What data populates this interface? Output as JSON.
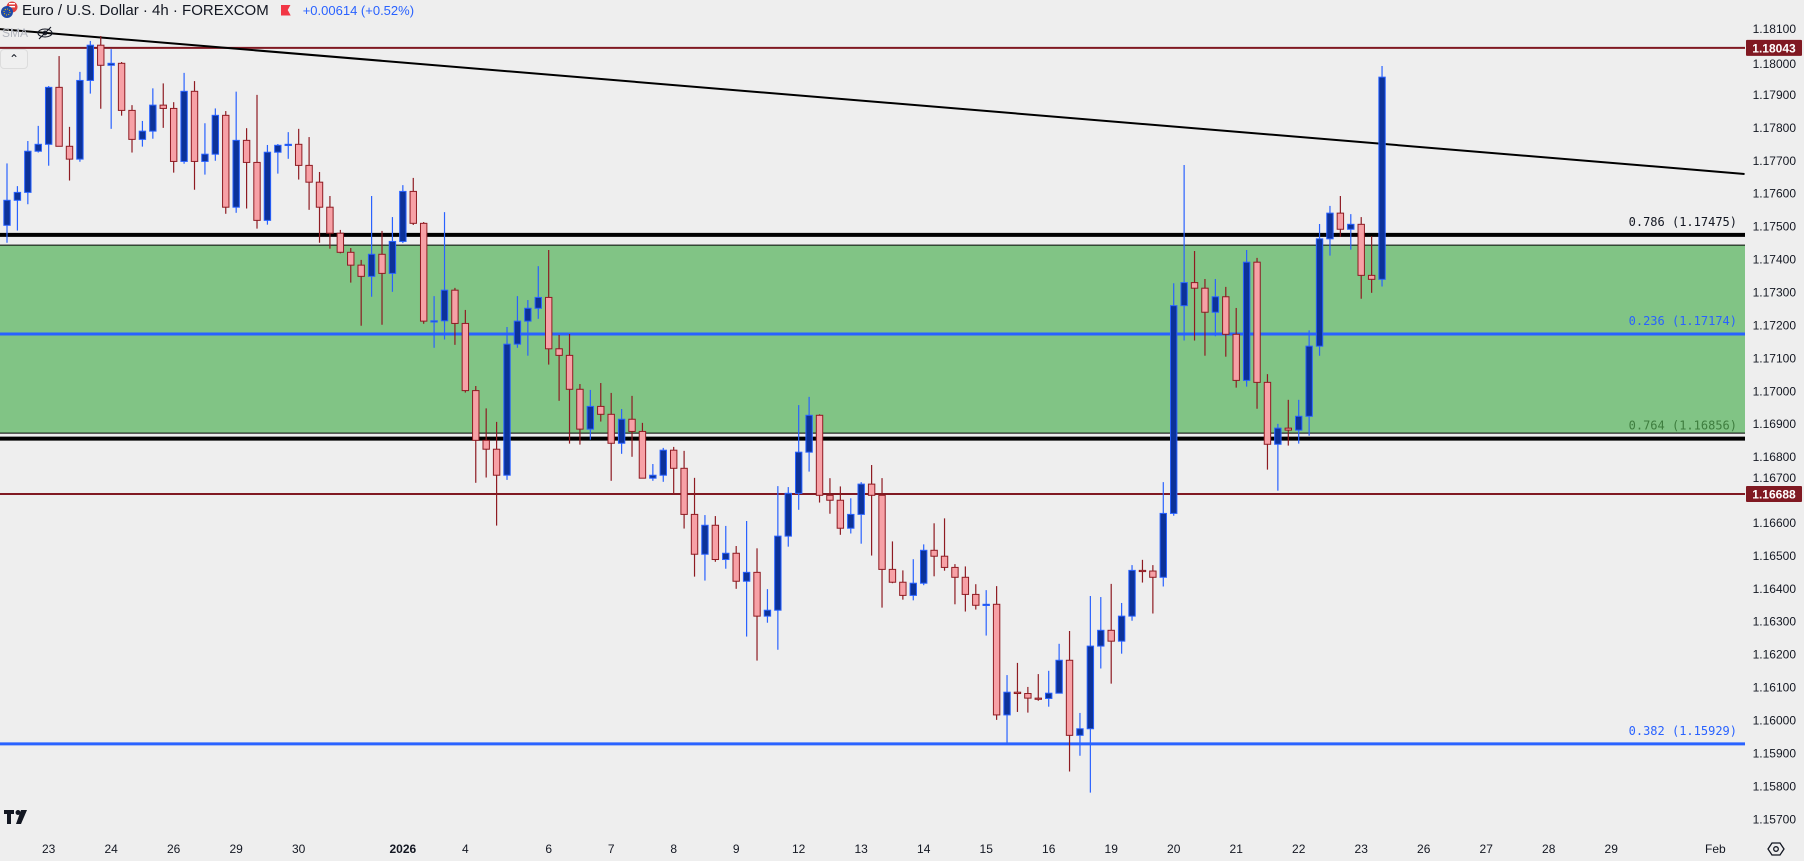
{
  "header": {
    "symbol_icon": "eur-usd-flag-icon",
    "title": "Euro / U.S. Dollar · 4h · FOREXCOM",
    "change": "+0.00614 (+0.52%)",
    "indicator": "SMA",
    "indicator_visibility_icon": "eye-slash-icon",
    "collapse_icon": "chevron-up-icon"
  },
  "colors": {
    "background": "#eeeeee",
    "bull_body": "#0c3299",
    "bull_border": "#2962ff",
    "bear_body": "#f7a1a6",
    "bear_border": "#8e1b22",
    "zone": "#81c485",
    "fib_blue": "#2962ff",
    "fib_black": "#000000",
    "level_red": "#801922",
    "trendline": "#000000"
  },
  "chart_data": {
    "type": "candlestick",
    "title": "Euro / U.S. Dollar · 4h · FOREXCOM",
    "ylim": [
      1.1565,
      1.1819
    ],
    "grid": false,
    "y_ticks": [
      "1.18200",
      "1.18100",
      "1.18000",
      "1.17900",
      "1.17800",
      "1.17700",
      "1.17600",
      "1.17500",
      "1.17400",
      "1.17300",
      "1.17200",
      "1.17100",
      "1.17000",
      "1.16900",
      "1.16800",
      "1.16700",
      "1.16600",
      "1.16500",
      "1.16400",
      "1.16300",
      "1.16200",
      "1.16100",
      "1.16000",
      "1.15900",
      "1.15800",
      "1.15700"
    ],
    "x_ticks": [
      {
        "label": "23",
        "bar": 4
      },
      {
        "label": "24",
        "bar": 10
      },
      {
        "label": "26",
        "bar": 16
      },
      {
        "label": "29",
        "bar": 22
      },
      {
        "label": "30",
        "bar": 28
      },
      {
        "label": "2026",
        "bar": 38,
        "bold": true
      },
      {
        "label": "4",
        "bar": 44
      },
      {
        "label": "6",
        "bar": 52
      },
      {
        "label": "7",
        "bar": 58
      },
      {
        "label": "8",
        "bar": 64
      },
      {
        "label": "9",
        "bar": 70
      },
      {
        "label": "12",
        "bar": 76
      },
      {
        "label": "13",
        "bar": 82
      },
      {
        "label": "14",
        "bar": 88
      },
      {
        "label": "15",
        "bar": 94
      },
      {
        "label": "16",
        "bar": 100
      },
      {
        "label": "19",
        "bar": 106
      },
      {
        "label": "20",
        "bar": 112
      },
      {
        "label": "21",
        "bar": 118
      },
      {
        "label": "22",
        "bar": 124
      },
      {
        "label": "23",
        "bar": 130
      },
      {
        "label": "26",
        "bar": 136
      },
      {
        "label": "27",
        "bar": 142
      },
      {
        "label": "28",
        "bar": 148
      },
      {
        "label": "29",
        "bar": 154
      },
      {
        "label": "Feb",
        "bar": 164
      }
    ],
    "ohlc_fields": [
      "open",
      "high",
      "low",
      "close"
    ],
    "candles": [
      [
        1.17504,
        1.17692,
        1.17451,
        1.1758
      ],
      [
        1.1758,
        1.17623,
        1.17488,
        1.17604
      ],
      [
        1.17604,
        1.1776,
        1.17568,
        1.17729
      ],
      [
        1.17729,
        1.17806,
        1.17725,
        1.1775
      ],
      [
        1.1775,
        1.17927,
        1.17685,
        1.17923
      ],
      [
        1.17923,
        1.18018,
        1.17744,
        1.17744
      ],
      [
        1.17744,
        1.17803,
        1.1764,
        1.17705
      ],
      [
        1.17705,
        1.1797,
        1.17697,
        1.17944
      ],
      [
        1.17944,
        1.18064,
        1.17904,
        1.18051
      ],
      [
        1.18051,
        1.18079,
        1.17858,
        1.1799
      ],
      [
        1.1799,
        1.18039,
        1.17797,
        1.17996
      ],
      [
        1.17996,
        1.18,
        1.17837,
        1.17853
      ],
      [
        1.17853,
        1.17869,
        1.17725,
        1.17765
      ],
      [
        1.17765,
        1.17821,
        1.17743,
        1.1779
      ],
      [
        1.1779,
        1.1792,
        1.17767,
        1.17869
      ],
      [
        1.17869,
        1.17935,
        1.178,
        1.17859
      ],
      [
        1.17859,
        1.17878,
        1.17664,
        1.17698
      ],
      [
        1.17698,
        1.17967,
        1.17691,
        1.17911
      ],
      [
        1.17911,
        1.17942,
        1.17612,
        1.17698
      ],
      [
        1.17698,
        1.17814,
        1.17658,
        1.1772
      ],
      [
        1.1772,
        1.17859,
        1.177,
        1.17838
      ],
      [
        1.17838,
        1.17851,
        1.17539,
        1.17559
      ],
      [
        1.17559,
        1.1791,
        1.17542,
        1.17762
      ],
      [
        1.17762,
        1.17799,
        1.17555,
        1.17695
      ],
      [
        1.17695,
        1.179,
        1.17494,
        1.17519
      ],
      [
        1.17519,
        1.17748,
        1.17506,
        1.17726
      ],
      [
        1.17726,
        1.17751,
        1.17661,
        1.17747
      ],
      [
        1.17747,
        1.17787,
        1.17706,
        1.1775
      ],
      [
        1.1775,
        1.17797,
        1.17643,
        1.17686
      ],
      [
        1.17686,
        1.17772,
        1.17551,
        1.17635
      ],
      [
        1.17635,
        1.17666,
        1.17451,
        1.17559
      ],
      [
        1.17559,
        1.17593,
        1.17433,
        1.1748
      ],
      [
        1.1748,
        1.1749,
        1.17419,
        1.17422
      ],
      [
        1.17422,
        1.17435,
        1.1733,
        1.17383
      ],
      [
        1.17383,
        1.17399,
        1.17199,
        1.17349
      ],
      [
        1.17349,
        1.17593,
        1.17287,
        1.17416
      ],
      [
        1.17416,
        1.17487,
        1.17202,
        1.17358
      ],
      [
        1.17358,
        1.17529,
        1.17302,
        1.17455
      ],
      [
        1.17455,
        1.17626,
        1.1745,
        1.17607
      ],
      [
        1.17607,
        1.17648,
        1.17505,
        1.1751
      ],
      [
        1.1751,
        1.17514,
        1.17205,
        1.17213
      ],
      [
        1.17213,
        1.17289,
        1.17132,
        1.17214
      ],
      [
        1.17214,
        1.17544,
        1.17157,
        1.17307
      ],
      [
        1.17307,
        1.17314,
        1.17141,
        1.17206
      ],
      [
        1.17206,
        1.17247,
        1.16996,
        1.17002
      ],
      [
        1.17002,
        1.17016,
        1.16722,
        1.16851
      ],
      [
        1.16851,
        1.16948,
        1.16738,
        1.16824
      ],
      [
        1.16824,
        1.16907,
        1.16592,
        1.16745
      ],
      [
        1.16745,
        1.17195,
        1.16731,
        1.17143
      ],
      [
        1.17143,
        1.17289,
        1.17132,
        1.17213
      ],
      [
        1.17213,
        1.17277,
        1.17108,
        1.17252
      ],
      [
        1.17252,
        1.1738,
        1.1722,
        1.17285
      ],
      [
        1.17285,
        1.17429,
        1.17081,
        1.17129
      ],
      [
        1.17129,
        1.17171,
        1.16971,
        1.17109
      ],
      [
        1.17109,
        1.17174,
        1.16841,
        1.17006
      ],
      [
        1.17006,
        1.17022,
        1.16838,
        1.16885
      ],
      [
        1.16885,
        1.17004,
        1.16853,
        1.16954
      ],
      [
        1.16954,
        1.17025,
        1.16908,
        1.1693
      ],
      [
        1.1693,
        1.16995,
        1.16728,
        1.16842
      ],
      [
        1.16842,
        1.16946,
        1.1681,
        1.16915
      ],
      [
        1.16915,
        1.16986,
        1.16801,
        1.16878
      ],
      [
        1.16878,
        1.16904,
        1.16736,
        1.16736
      ],
      [
        1.16736,
        1.16779,
        1.16728,
        1.16745
      ],
      [
        1.16745,
        1.16828,
        1.16725,
        1.16821
      ],
      [
        1.16821,
        1.16831,
        1.16687,
        1.16766
      ],
      [
        1.16766,
        1.16819,
        1.16583,
        1.16626
      ],
      [
        1.16626,
        1.16737,
        1.16437,
        1.16505
      ],
      [
        1.16505,
        1.16624,
        1.16425,
        1.16593
      ],
      [
        1.16593,
        1.16621,
        1.16482,
        1.16489
      ],
      [
        1.16489,
        1.16591,
        1.16461,
        1.16508
      ],
      [
        1.16508,
        1.1653,
        1.164,
        1.16423
      ],
      [
        1.16423,
        1.16606,
        1.16255,
        1.1645
      ],
      [
        1.1645,
        1.16523,
        1.16182,
        1.16317
      ],
      [
        1.16317,
        1.16399,
        1.16297,
        1.16335
      ],
      [
        1.16335,
        1.16712,
        1.16215,
        1.1656
      ],
      [
        1.1656,
        1.16709,
        1.16528,
        1.1669
      ],
      [
        1.1669,
        1.16958,
        1.1664,
        1.16815
      ],
      [
        1.16815,
        1.16983,
        1.16756,
        1.16927
      ],
      [
        1.16927,
        1.1693,
        1.16662,
        1.16684
      ],
      [
        1.16684,
        1.16736,
        1.16628,
        1.16669
      ],
      [
        1.16669,
        1.16711,
        1.16564,
        1.16584
      ],
      [
        1.16584,
        1.16675,
        1.16568,
        1.16626
      ],
      [
        1.16626,
        1.16724,
        1.16537,
        1.16718
      ],
      [
        1.16718,
        1.16776,
        1.16501,
        1.16684
      ],
      [
        1.16684,
        1.16736,
        1.16343,
        1.16459
      ],
      [
        1.16459,
        1.16544,
        1.16417,
        1.1642
      ],
      [
        1.1642,
        1.16456,
        1.16367,
        1.1638
      ],
      [
        1.1638,
        1.1649,
        1.16365,
        1.16417
      ],
      [
        1.16417,
        1.16535,
        1.16411,
        1.16517
      ],
      [
        1.16517,
        1.16599,
        1.16438,
        1.16499
      ],
      [
        1.16499,
        1.16614,
        1.16455,
        1.16465
      ],
      [
        1.16465,
        1.16475,
        1.16353,
        1.16435
      ],
      [
        1.16435,
        1.16468,
        1.16331,
        1.16383
      ],
      [
        1.16383,
        1.16414,
        1.16337,
        1.1635
      ],
      [
        1.1635,
        1.16396,
        1.16258,
        1.16353
      ],
      [
        1.16353,
        1.16408,
        1.16002,
        1.16017
      ],
      [
        1.16017,
        1.16138,
        1.15931,
        1.16086
      ],
      [
        1.16086,
        1.16175,
        1.16026,
        1.16082
      ],
      [
        1.16082,
        1.16102,
        1.16024,
        1.16068
      ],
      [
        1.16068,
        1.16141,
        1.1606,
        1.16067
      ],
      [
        1.16067,
        1.16151,
        1.16042,
        1.16083
      ],
      [
        1.16083,
        1.16233,
        1.16082,
        1.16183
      ],
      [
        1.16183,
        1.16272,
        1.15845,
        1.15955
      ],
      [
        1.15955,
        1.16023,
        1.15893,
        1.15975
      ],
      [
        1.15975,
        1.16378,
        1.15781,
        1.16226
      ],
      [
        1.16226,
        1.16375,
        1.16158,
        1.16274
      ],
      [
        1.16274,
        1.16415,
        1.16112,
        1.16241
      ],
      [
        1.16241,
        1.16357,
        1.16203,
        1.16317
      ],
      [
        1.16317,
        1.16472,
        1.16303,
        1.16456
      ],
      [
        1.16456,
        1.16488,
        1.16419,
        1.16454
      ],
      [
        1.16454,
        1.16472,
        1.16325,
        1.16435
      ],
      [
        1.16435,
        1.16724,
        1.16407,
        1.16629
      ],
      [
        1.16629,
        1.17328,
        1.16622,
        1.1726
      ],
      [
        1.1726,
        1.17687,
        1.17154,
        1.1733
      ],
      [
        1.1733,
        1.17426,
        1.17154,
        1.17313
      ],
      [
        1.17313,
        1.17341,
        1.17108,
        1.1724
      ],
      [
        1.1724,
        1.17341,
        1.17167,
        1.17287
      ],
      [
        1.17287,
        1.17317,
        1.17105,
        1.17173
      ],
      [
        1.17173,
        1.17253,
        1.17011,
        1.17033
      ],
      [
        1.17033,
        1.17429,
        1.17014,
        1.17392
      ],
      [
        1.17392,
        1.17405,
        1.16947,
        1.17027
      ],
      [
        1.17027,
        1.17052,
        1.16762,
        1.16839
      ],
      [
        1.16839,
        1.16901,
        1.16698,
        1.16888
      ],
      [
        1.16888,
        1.16974,
        1.16835,
        1.16882
      ],
      [
        1.16882,
        1.16974,
        1.16841,
        1.16924
      ],
      [
        1.16924,
        1.17185,
        1.16865,
        1.17137
      ],
      [
        1.17137,
        1.17508,
        1.17108,
        1.17463
      ],
      [
        1.17463,
        1.17563,
        1.17412,
        1.17541
      ],
      [
        1.17541,
        1.17593,
        1.17469,
        1.17492
      ],
      [
        1.17492,
        1.17538,
        1.1743,
        1.17507
      ],
      [
        1.17507,
        1.17529,
        1.17281,
        1.17352
      ],
      [
        1.17352,
        1.17471,
        1.17299,
        1.1734
      ],
      [
        1.1734,
        1.17988,
        1.17318,
        1.17954
      ]
    ],
    "zone": {
      "top": 1.17444,
      "bottom": 1.16873
    },
    "fib_levels": [
      {
        "label": "0.786 (1.17475)",
        "price": 1.17475,
        "color": "#000000",
        "text_color": "#131722"
      },
      {
        "label": "0.236 (1.17174)",
        "price": 1.17174,
        "color": "#2962ff",
        "text_color": "#2962ff"
      },
      {
        "label": "0.764 (1.16856)",
        "price": 1.16856,
        "color": "#000000",
        "text_color": "#3e7d3e"
      },
      {
        "label": "0.382 (1.15929)",
        "price": 1.15929,
        "color": "#2962ff",
        "text_color": "#2962ff"
      }
    ],
    "horizontal_levels": [
      {
        "price": 1.18043,
        "label": "1.18043"
      },
      {
        "price": 1.16688,
        "label": "1.16688"
      }
    ],
    "trendline": [
      {
        "bar": -0.7,
        "price": 1.181
      },
      {
        "bar": 166.8,
        "price": 1.1766
      }
    ]
  },
  "footer": {
    "logo": "TV",
    "settings_icon": "settings-icon"
  }
}
